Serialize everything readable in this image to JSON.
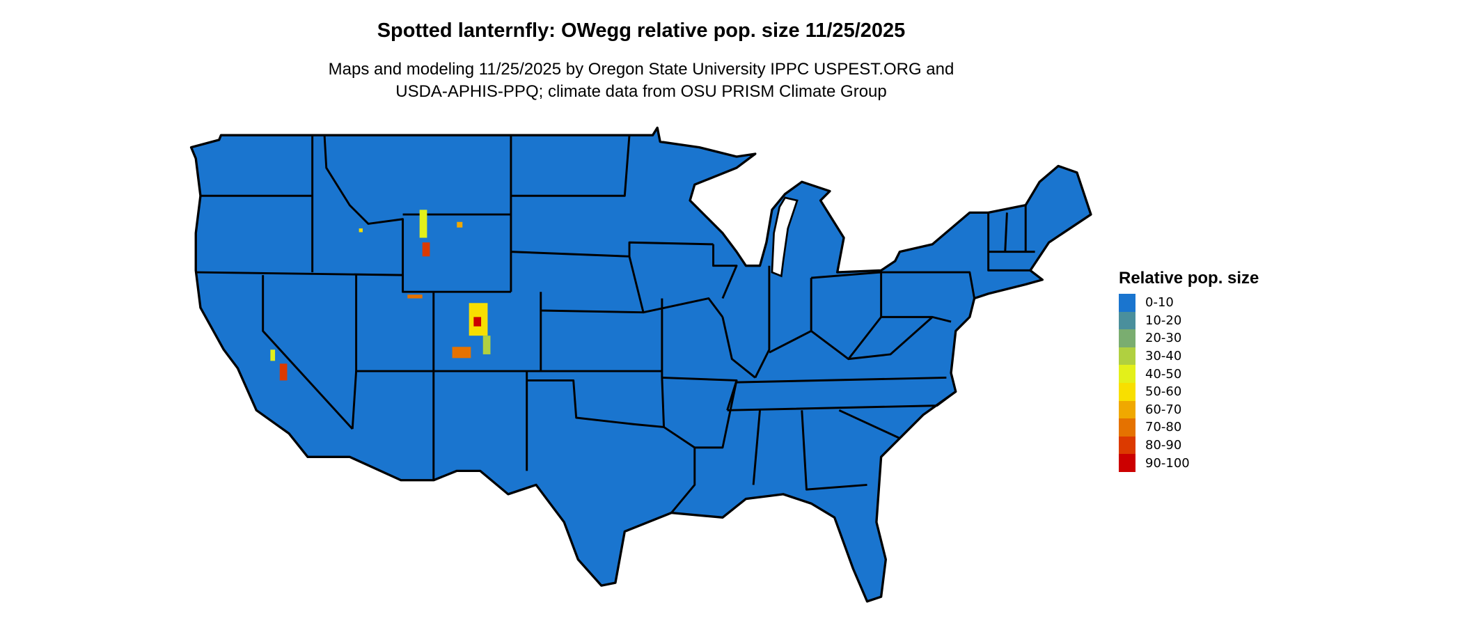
{
  "title": "Spotted lanternfly: OWegg relative pop. size 11/25/2025",
  "subtitle_lines": [
    "Maps and modeling 11/25/2025 by Oregon State University IPPC USPEST.ORG and",
    "USDA-APHIS-PPQ; climate data from OSU PRISM Climate Group"
  ],
  "map": {
    "region": "Contiguous United States",
    "dominant_class": "0-10",
    "boundaries": "state outlines in black"
  },
  "legend": {
    "title": "Relative pop. size",
    "items": [
      {
        "label": "0-10",
        "color": "#1a75cf"
      },
      {
        "label": "10-20",
        "color": "#4a8f9c"
      },
      {
        "label": "20-30",
        "color": "#7aad70"
      },
      {
        "label": "30-40",
        "color": "#b0d040"
      },
      {
        "label": "40-50",
        "color": "#e3f01a"
      },
      {
        "label": "50-60",
        "color": "#f8df00"
      },
      {
        "label": "60-70",
        "color": "#f0a800"
      },
      {
        "label": "70-80",
        "color": "#e57200"
      },
      {
        "label": "80-90",
        "color": "#dc3a00"
      },
      {
        "label": "90-100",
        "color": "#cc0000"
      }
    ]
  }
}
